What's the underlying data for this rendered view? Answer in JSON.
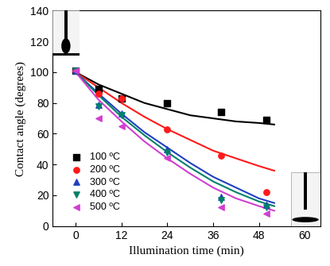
{
  "chart_data": {
    "type": "scatter",
    "x_label": "Illumination time (min)",
    "y_label": "Contact angle (degrees)",
    "x": [
      0,
      6,
      12,
      24,
      38,
      50
    ],
    "fit_x": [
      0,
      6,
      12,
      18,
      24,
      30,
      36,
      42,
      48,
      52
    ],
    "series": [
      {
        "name": "100 ºC",
        "color": "#000000",
        "marker": "square",
        "values": [
          101,
          89,
          83,
          80,
          74,
          69
        ],
        "fit": [
          100,
          92,
          86,
          80,
          76,
          72,
          70,
          68,
          67,
          66
        ]
      },
      {
        "name": "200 ºC",
        "color": "#ff1a1a",
        "marker": "circle",
        "values": [
          101,
          86,
          83,
          63,
          46,
          22
        ],
        "fit": [
          100,
          90,
          80,
          71,
          63,
          56,
          49,
          44,
          39,
          36
        ]
      },
      {
        "name": "300 ºC",
        "color": "#2040c0",
        "marker": "triangle_up",
        "values": [
          101,
          79,
          73,
          50,
          19,
          14
        ],
        "fit": [
          100,
          86,
          73,
          61,
          51,
          41,
          32,
          25,
          18,
          15
        ]
      },
      {
        "name": "400 ºC",
        "color": "#00806a",
        "marker": "triangle_down",
        "values": [
          101,
          78,
          72,
          48,
          17,
          12
        ],
        "fit": [
          100,
          85,
          71,
          59,
          48,
          38,
          29,
          22,
          16,
          13
        ]
      },
      {
        "name": "500 ºC",
        "color": "#d040d0",
        "marker": "triangle_left",
        "values": [
          101,
          70,
          65,
          44,
          12,
          8
        ],
        "fit": [
          100,
          82,
          68,
          55,
          44,
          34,
          25,
          18,
          13,
          10
        ]
      }
    ],
    "xlim": [
      -6,
      64
    ],
    "ylim": [
      0,
      140
    ],
    "xticks": [
      0,
      12,
      24,
      36,
      48,
      60
    ],
    "yticks": [
      0,
      20,
      40,
      60,
      80,
      100,
      120,
      140
    ],
    "legend": "lower left",
    "grid": false
  }
}
